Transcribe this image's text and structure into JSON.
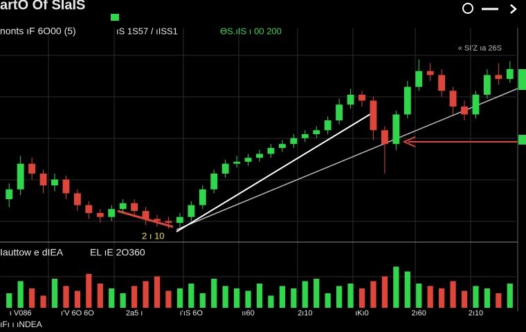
{
  "chart_data": {
    "type": "candlestick",
    "title": "artO Of SIaIS",
    "info_left": "nonts  ıF 6O00 (5)",
    "info_mid": "ıS 1S57 / ıISS1",
    "info_green": "ӨS.ıIS  ı 00 200",
    "info_right": "« SI'Z ıa 26S",
    "volume_title": "Iauttow e dIEA",
    "volume_info": "EL ıE 2O360",
    "annotation": "2 ı 10",
    "footer": "ıFı ı ıNDEA",
    "categories": [
      null,
      "ı V086",
      null,
      null,
      null,
      null,
      "ı'V 6O 6O",
      null,
      null,
      null,
      null,
      "2a5 ı",
      null,
      null,
      null,
      null,
      "ı'ıS 6O",
      null,
      null,
      null,
      null,
      "ıı60",
      null,
      null,
      null,
      null,
      "2ı10",
      null,
      null,
      null,
      null,
      "ıKı0",
      null,
      null,
      null,
      null,
      "2ı60",
      null,
      null,
      null,
      null,
      "2ı10",
      null,
      null,
      null
    ],
    "open": [
      115,
      120,
      133,
      128,
      122,
      125,
      118,
      112,
      108,
      106,
      110,
      113,
      109,
      105,
      104,
      103,
      106,
      112,
      120,
      128,
      133,
      134,
      136,
      138,
      141,
      143,
      146,
      148,
      150,
      155,
      163,
      168,
      165,
      150,
      143,
      158,
      172,
      180,
      178,
      170,
      162,
      158,
      168,
      178,
      176
    ],
    "high": [
      123,
      137,
      136,
      130,
      128,
      127,
      120,
      114,
      110,
      112,
      115,
      115,
      111,
      107,
      106,
      108,
      114,
      122,
      130,
      135,
      137,
      138,
      140,
      143,
      145,
      148,
      150,
      152,
      157,
      166,
      171,
      170,
      167,
      152,
      160,
      175,
      186,
      184,
      181,
      172,
      165,
      170,
      181,
      184,
      185
    ],
    "low": [
      111,
      117,
      125,
      118,
      119,
      115,
      109,
      105,
      103,
      104,
      108,
      106,
      102,
      101,
      100,
      101,
      104,
      110,
      118,
      126,
      131,
      132,
      134,
      136,
      139,
      141,
      144,
      146,
      148,
      153,
      161,
      162,
      145,
      128,
      140,
      156,
      170,
      175,
      167,
      158,
      155,
      156,
      166,
      173,
      174
    ],
    "close": [
      120,
      133,
      128,
      122,
      125,
      118,
      112,
      108,
      106,
      110,
      113,
      109,
      105,
      104,
      103,
      106,
      112,
      120,
      128,
      133,
      134,
      136,
      138,
      141,
      143,
      146,
      148,
      150,
      155,
      163,
      168,
      165,
      150,
      143,
      158,
      172,
      180,
      178,
      170,
      162,
      158,
      168,
      178,
      176,
      181
    ],
    "volume": [
      30,
      55,
      40,
      25,
      60,
      45,
      35,
      70,
      50,
      40,
      30,
      45,
      55,
      65,
      35,
      40,
      50,
      30,
      60,
      45,
      40,
      35,
      50,
      25,
      45,
      40,
      55,
      60,
      30,
      45,
      50,
      40,
      55,
      65,
      85,
      75,
      50,
      45,
      40,
      55,
      35,
      45,
      40,
      30,
      50
    ],
    "up_color": "#2fd84a",
    "down_color": "#e0453a",
    "ylim": [
      95,
      195
    ],
    "volume_ylim": [
      0,
      100
    ]
  }
}
